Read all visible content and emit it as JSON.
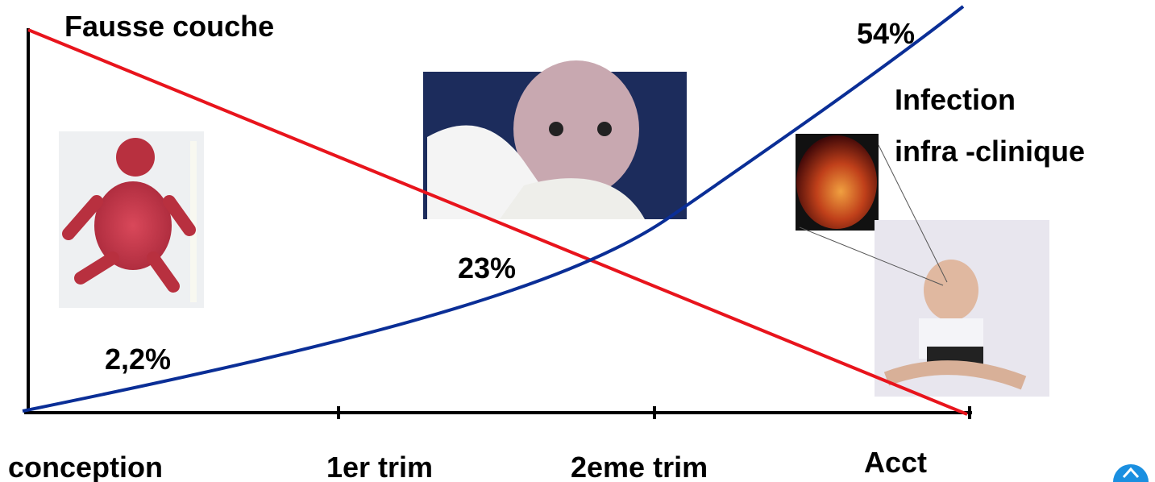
{
  "title": "Fausse couche",
  "labels": {
    "late": "54%",
    "mid": "23%",
    "early": "2,2%"
  },
  "annotation": [
    "Infection",
    "infra -clinique"
  ],
  "axis": [
    "conception",
    "1er trim",
    "2eme trim",
    "Acct"
  ]
}
